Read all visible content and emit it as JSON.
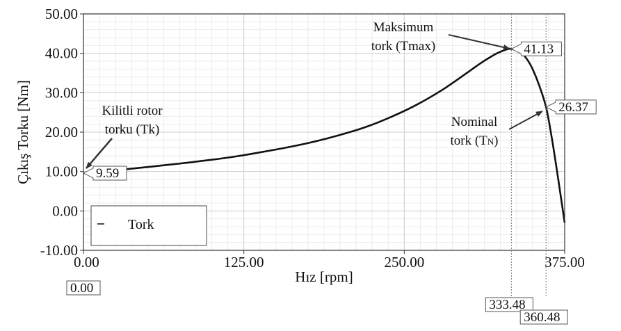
{
  "chart_data": {
    "type": "line",
    "title": "",
    "xlabel": "Hız  [rpm]",
    "ylabel": "Çıkış Torku  [Nm]",
    "xlim": [
      0,
      375
    ],
    "ylim": [
      -10,
      50
    ],
    "x_ticks": [
      "0.00",
      "125.00",
      "250.00",
      "375.00"
    ],
    "y_ticks": [
      "50.00",
      "40.00",
      "30.00",
      "20.00",
      "10.00",
      "0.00",
      "-10.00"
    ],
    "grid": true,
    "legend": {
      "position": "bottom-left",
      "entries": [
        "Tork"
      ]
    },
    "series": [
      {
        "name": "Tork",
        "x": [
          0,
          20,
          40,
          60,
          80,
          100,
          120,
          140,
          160,
          180,
          200,
          220,
          240,
          260,
          280,
          300,
          310,
          320,
          325,
          330,
          333.48,
          340,
          345,
          350,
          355,
          360.48,
          365,
          370,
          375
        ],
        "y": [
          9.59,
          10.2,
          10.8,
          11.5,
          12.2,
          13.0,
          13.9,
          15.0,
          16.2,
          17.6,
          19.3,
          21.3,
          23.9,
          27.0,
          30.8,
          35.3,
          37.6,
          39.6,
          40.4,
          41.0,
          41.13,
          40.3,
          38.8,
          36.0,
          32.0,
          26.37,
          18.5,
          8.0,
          -3.0
        ]
      }
    ],
    "markers": [
      {
        "x": 0,
        "y": 9.59,
        "label": "9.59"
      },
      {
        "x": 333.48,
        "y": 41.13,
        "label": "41.13"
      },
      {
        "x": 360.48,
        "y": 26.37,
        "label": "26.37"
      }
    ],
    "x_markers": [
      {
        "x": 0,
        "label": "0.00"
      },
      {
        "x": 333.48,
        "label": "333.48"
      },
      {
        "x": 360.48,
        "label": "360.48"
      }
    ],
    "annotations": {
      "tk_line1": "Kilitli rotor",
      "tk_line2": "torku (Tk)",
      "tmax_line1": "Maksimum",
      "tmax_line2": "tork (Tmax)",
      "tn_line1": "Nominal",
      "tn_line2": "tork (T",
      "tn_sub": "N",
      "tn_close": ")"
    }
  }
}
